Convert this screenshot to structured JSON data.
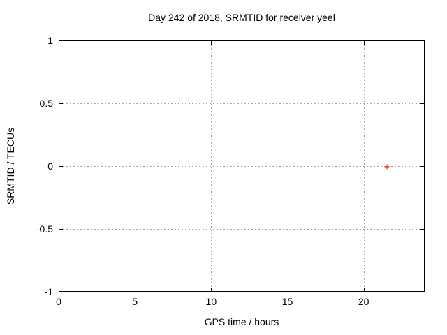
{
  "colors": {
    "background": "#ffffff",
    "border": "#000000",
    "grid": "#a6a6a6",
    "text": "#000000",
    "point": "#ff0000"
  },
  "chart_data": {
    "type": "scatter",
    "title": "Day 242 of 2018, SRMTID for receiver yeel",
    "xlabel": "GPS time / hours",
    "ylabel": "SRMTID / TECUs",
    "xlim": [
      0,
      24
    ],
    "ylim": [
      -1,
      1
    ],
    "xticks": [
      0,
      5,
      10,
      15,
      20
    ],
    "yticks": [
      -1,
      -0.5,
      0,
      0.5,
      1
    ],
    "grid": true,
    "legend": "none",
    "series": [
      {
        "marker": "plus",
        "color": "#ff0000",
        "points": [
          {
            "x": 21.5,
            "y": 0
          }
        ]
      }
    ]
  }
}
